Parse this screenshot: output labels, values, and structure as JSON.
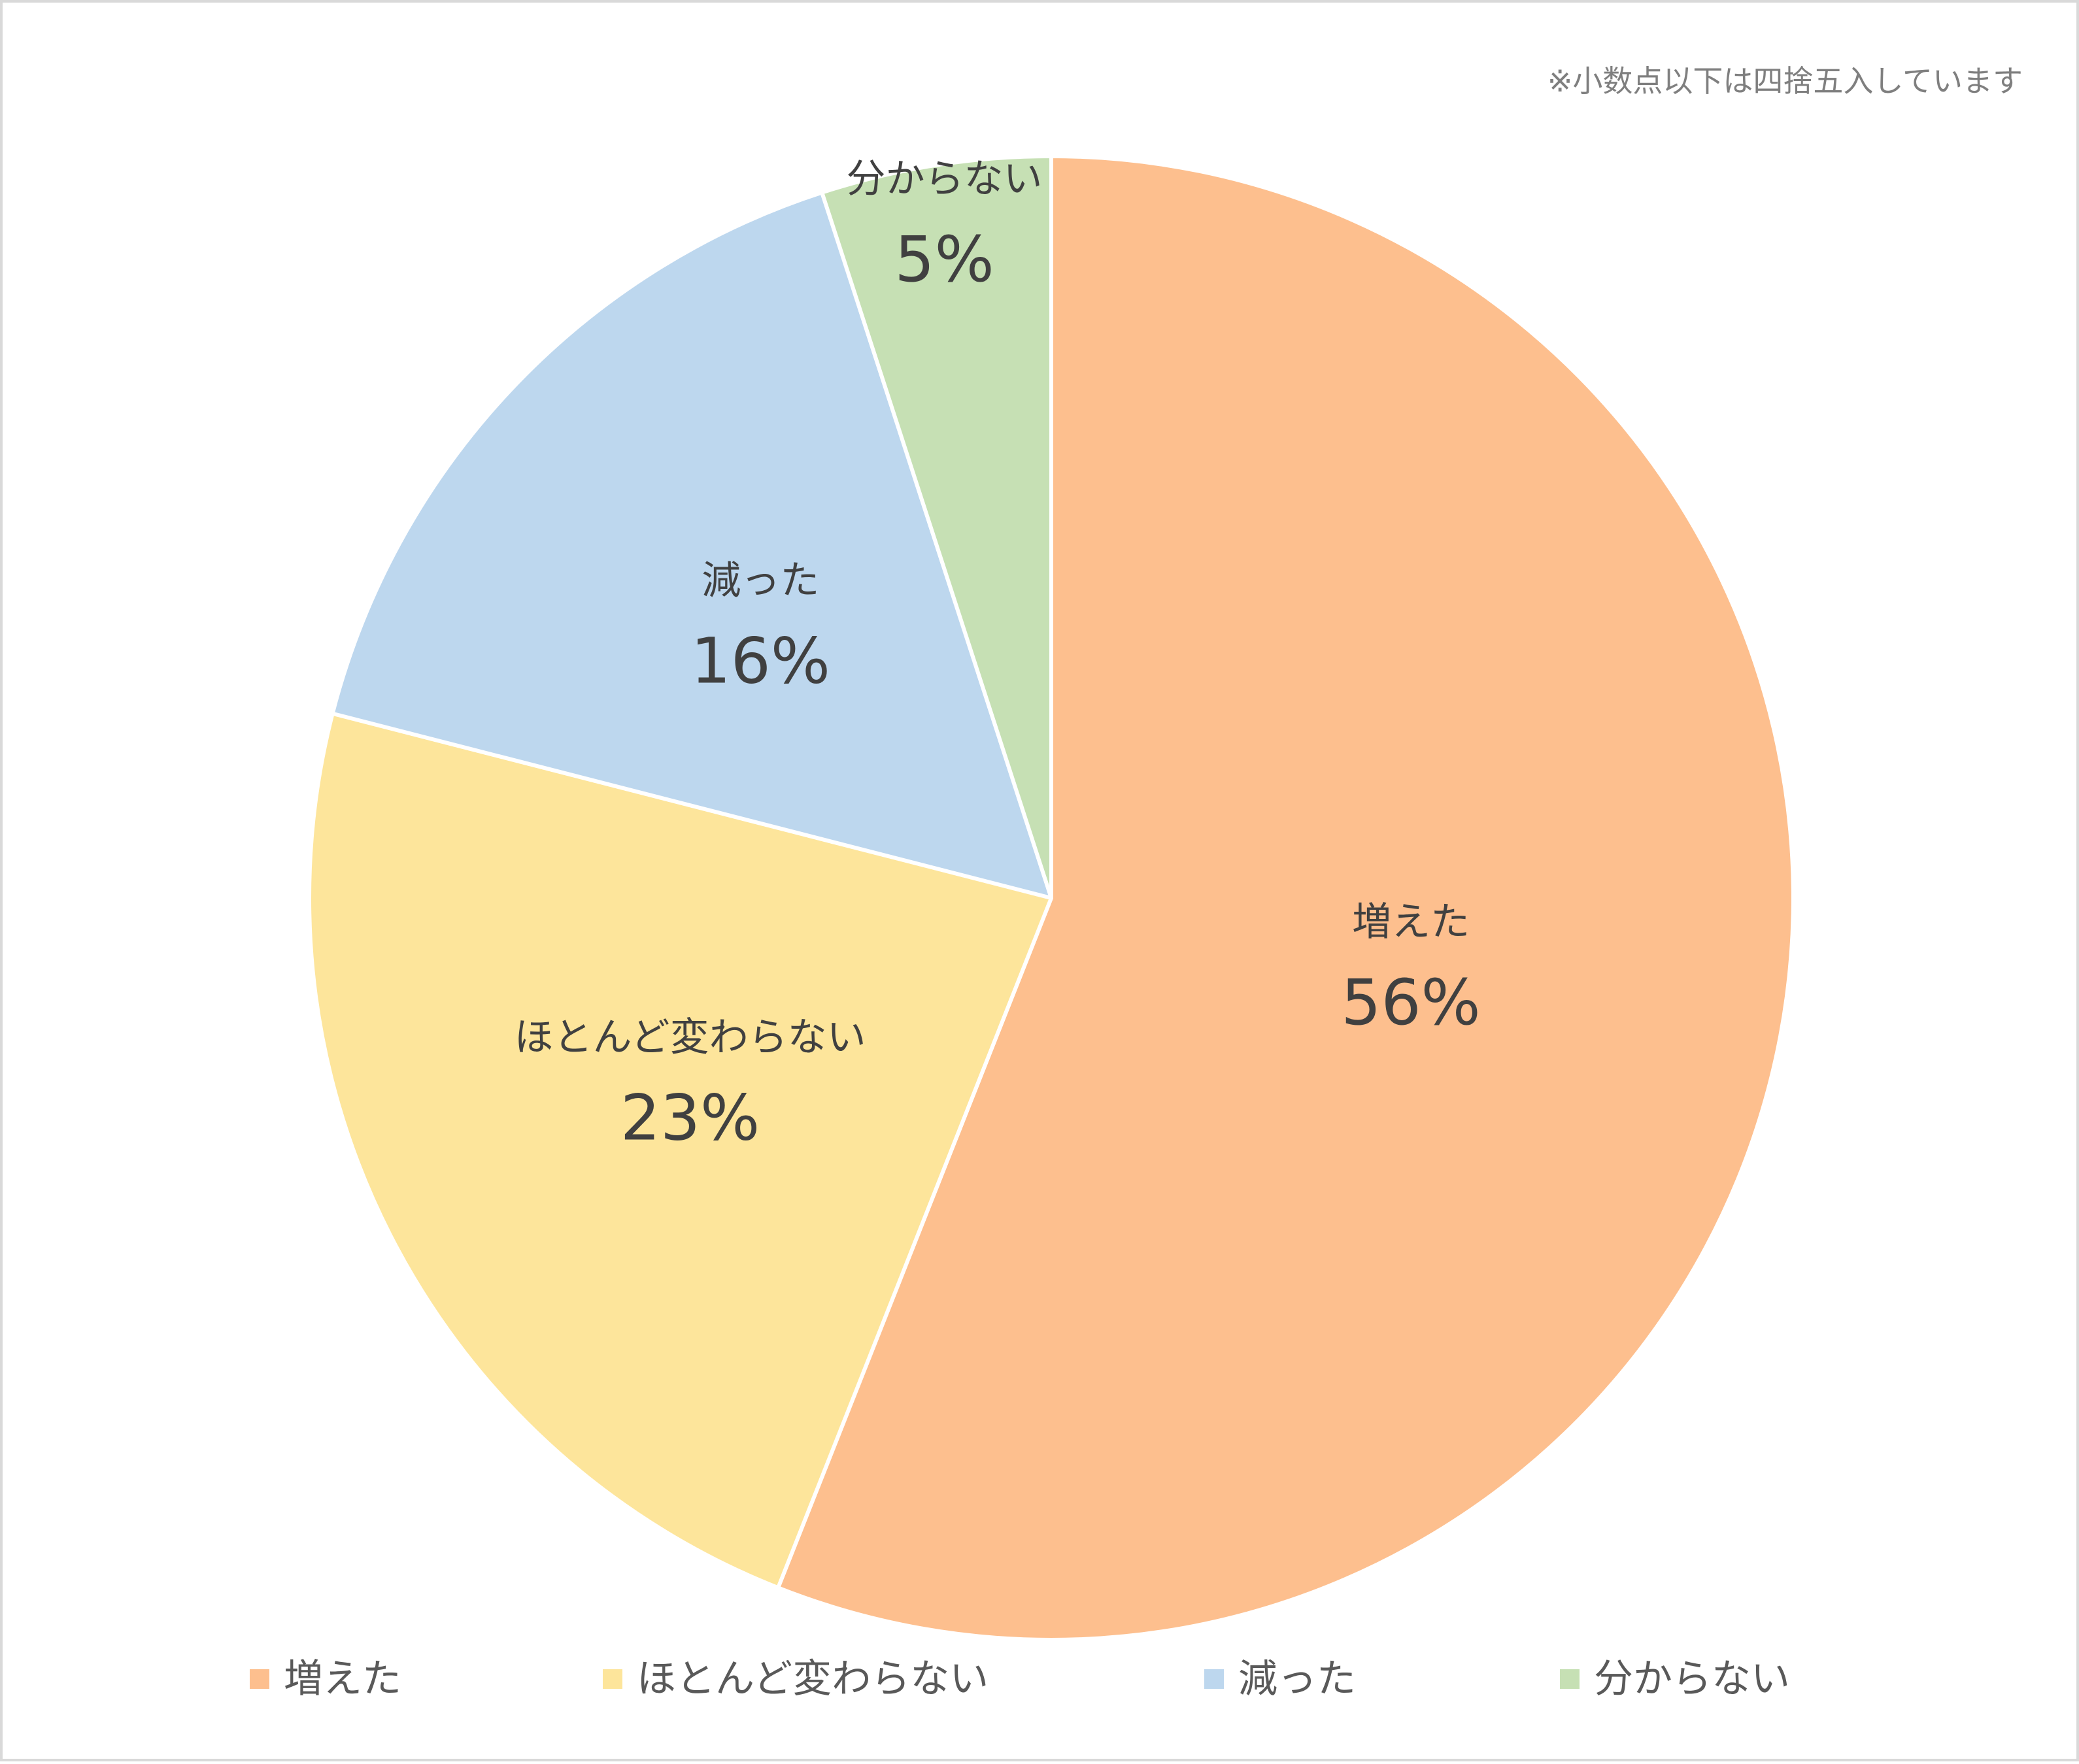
{
  "note": "※小数点以下は四捨五入しています",
  "chart_data": {
    "type": "pie",
    "start": "12 o'clock, clockwise",
    "categories": [
      "増えた",
      "ほとんど変わらない",
      "減った",
      "分からない"
    ],
    "values": [
      56,
      23,
      16,
      5
    ],
    "labels": [
      "56%",
      "23%",
      "16%",
      "5%"
    ],
    "colors": [
      "#FDBF8E",
      "#FDE59B",
      "#BDD7EE",
      "#C6E0B4"
    ],
    "slice_border": "#ffffff",
    "legend": {
      "position": "bottom",
      "items": [
        "増えた",
        "ほとんど変わらない",
        "減った",
        "分からない"
      ]
    }
  }
}
